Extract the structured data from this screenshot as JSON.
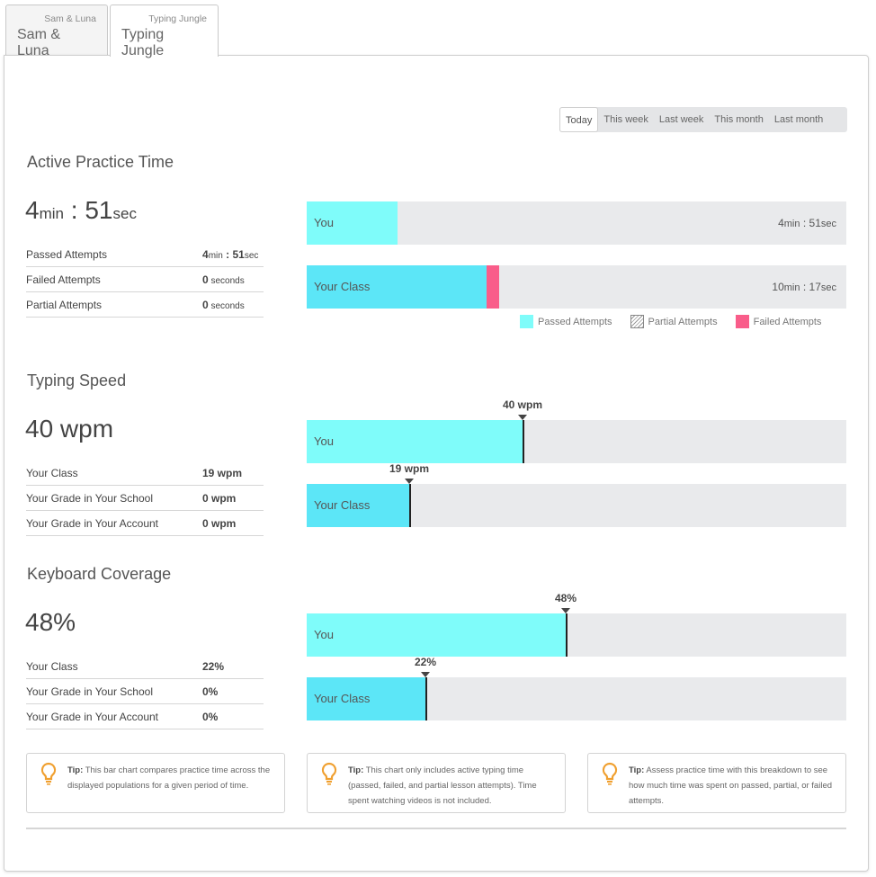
{
  "tabs": [
    {
      "sub": "Sam & Luna",
      "main": "Sam & Luna"
    },
    {
      "sub": "Typing Jungle",
      "main": "Typing Jungle"
    }
  ],
  "period": {
    "options": [
      "Today",
      "This week",
      "Last week",
      "This month",
      "Last month"
    ],
    "selected": "Today"
  },
  "practice": {
    "title": "Active Practice Time",
    "big_min": "4",
    "big_min_unit": "min",
    "big_sep": " : ",
    "big_sec": "51",
    "big_sec_unit": "sec",
    "rows": [
      {
        "label": "Passed Attempts",
        "v1": "4",
        "u1": "min",
        "sep": " : ",
        "v2": "51",
        "u2": "sec"
      },
      {
        "label": "Failed Attempts",
        "v1": "0",
        "u1": " seconds"
      },
      {
        "label": "Partial Attempts",
        "v1": "0",
        "u1": " seconds"
      }
    ],
    "bars": [
      {
        "label": "You",
        "min": "4",
        "min_unit": "min",
        "sep": " : ",
        "sec": "51",
        "sec_unit": "sec",
        "passed_fraction": 0.168,
        "failed_fraction": 0.0
      },
      {
        "label": "Your Class",
        "min": "10",
        "min_unit": "min",
        "sep": " : ",
        "sec": "17",
        "sec_unit": "sec",
        "passed_fraction": 0.333,
        "failed_fraction": 0.024
      }
    ],
    "legend": [
      "Passed Attempts",
      "Partial Attempts",
      "Failed Attempts"
    ]
  },
  "speed": {
    "title": "Typing Speed",
    "big": "40 wpm",
    "rows": [
      {
        "label": "Your Class",
        "value": "19 wpm"
      },
      {
        "label": "Your Grade in Your School",
        "value": "0 wpm"
      },
      {
        "label": "Your Grade in Your Account",
        "value": "0 wpm"
      }
    ],
    "bars": [
      {
        "label": "You",
        "marker": "40 wpm",
        "fraction": 0.4
      },
      {
        "label": "Your Class",
        "marker": "19 wpm",
        "fraction": 0.19
      }
    ]
  },
  "coverage": {
    "title": "Keyboard Coverage",
    "big": "48%",
    "rows": [
      {
        "label": "Your Class",
        "value": "22%"
      },
      {
        "label": "Your Grade in Your School",
        "value": "0%"
      },
      {
        "label": "Your Grade in Your Account",
        "value": "0%"
      }
    ],
    "bars": [
      {
        "label": "You",
        "marker": "48%",
        "fraction": 0.48
      },
      {
        "label": "Your Class",
        "marker": "22%",
        "fraction": 0.22
      }
    ]
  },
  "tips": [
    {
      "prefix": "Tip:",
      "text": " This bar chart compares practice time across the displayed populations for a given period of time."
    },
    {
      "prefix": "Tip:",
      "text": " This chart only includes active typing time (passed, failed, and partial lesson attempts). Time spent watching videos is not included."
    },
    {
      "prefix": "Tip:",
      "text": " Assess practice time with this breakdown to see how much time was spent on passed, partial, or failed attempts."
    }
  ],
  "colors": {
    "you": "#7ffcfa",
    "class": "#5ce6f7",
    "failed": "#f95d8a",
    "bar_bg": "#e9eaec",
    "tip_icon": "#f0a030"
  }
}
